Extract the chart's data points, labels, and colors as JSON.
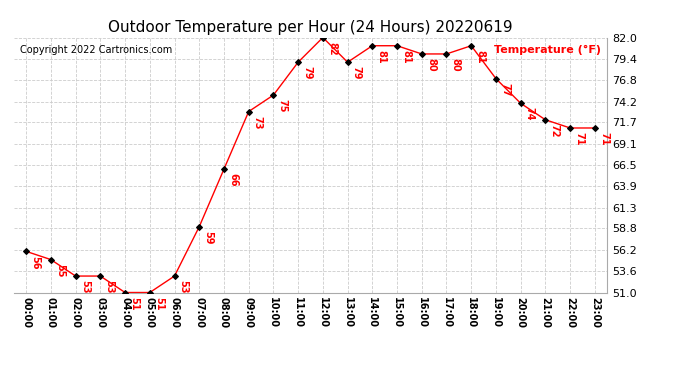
{
  "title": "Outdoor Temperature per Hour (24 Hours) 20220619",
  "copyright": "Copyright 2022 Cartronics.com",
  "ylabel": "Temperature (°F)",
  "hours": [
    "00:00",
    "01:00",
    "02:00",
    "03:00",
    "04:00",
    "05:00",
    "06:00",
    "07:00",
    "08:00",
    "09:00",
    "10:00",
    "11:00",
    "12:00",
    "13:00",
    "14:00",
    "15:00",
    "16:00",
    "17:00",
    "18:00",
    "19:00",
    "20:00",
    "21:00",
    "22:00",
    "23:00"
  ],
  "temps": [
    56,
    55,
    53,
    53,
    51,
    51,
    53,
    59,
    66,
    73,
    75,
    79,
    82,
    79,
    81,
    81,
    80,
    80,
    81,
    77,
    74,
    72,
    71,
    71
  ],
  "ylim_min": 51.0,
  "ylim_max": 82.0,
  "yticks": [
    51.0,
    53.6,
    56.2,
    58.8,
    61.3,
    63.9,
    66.5,
    69.1,
    71.7,
    74.2,
    76.8,
    79.4,
    82.0
  ],
  "line_color": "red",
  "marker_color": "black",
  "title_color": "black",
  "label_color": "red",
  "copyright_color": "black",
  "ylabel_color": "red",
  "background_color": "#ffffff",
  "grid_color": "#cccccc",
  "title_fontsize": 11,
  "label_fontsize": 7,
  "copyright_fontsize": 7,
  "ylabel_fontsize": 8,
  "tick_fontsize": 8,
  "xtick_fontsize": 7
}
